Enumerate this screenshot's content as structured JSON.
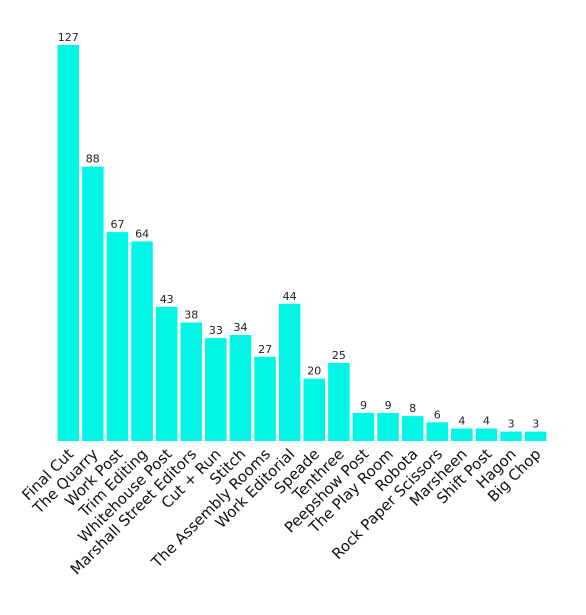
{
  "chart_data": {
    "type": "bar",
    "categories": [
      "Final Cut",
      "The Quarry",
      "Work Post",
      "Trim Editing",
      "Whitehouse Post",
      "Marshall Street Editors",
      "Cut + Run",
      "Stitch",
      "The Assembly Rooms",
      "Work Editorial",
      "Speade",
      "Tenthree",
      "Peepshow Post",
      "The Play Room",
      "Robota",
      "Rock Paper Scissors",
      "Marsheen",
      "Shift Post",
      "Hagon",
      "Big Chop"
    ],
    "values": [
      127,
      88,
      67,
      64,
      43,
      38,
      33,
      34,
      27,
      44,
      20,
      25,
      9,
      9,
      8,
      6,
      4,
      4,
      3,
      3
    ],
    "title": "",
    "xlabel": "",
    "ylabel": "",
    "ylim": [
      0,
      127
    ],
    "grid": false,
    "legend": "none",
    "colors": {
      "bar": "#00f7e6",
      "text": "#111111"
    }
  }
}
